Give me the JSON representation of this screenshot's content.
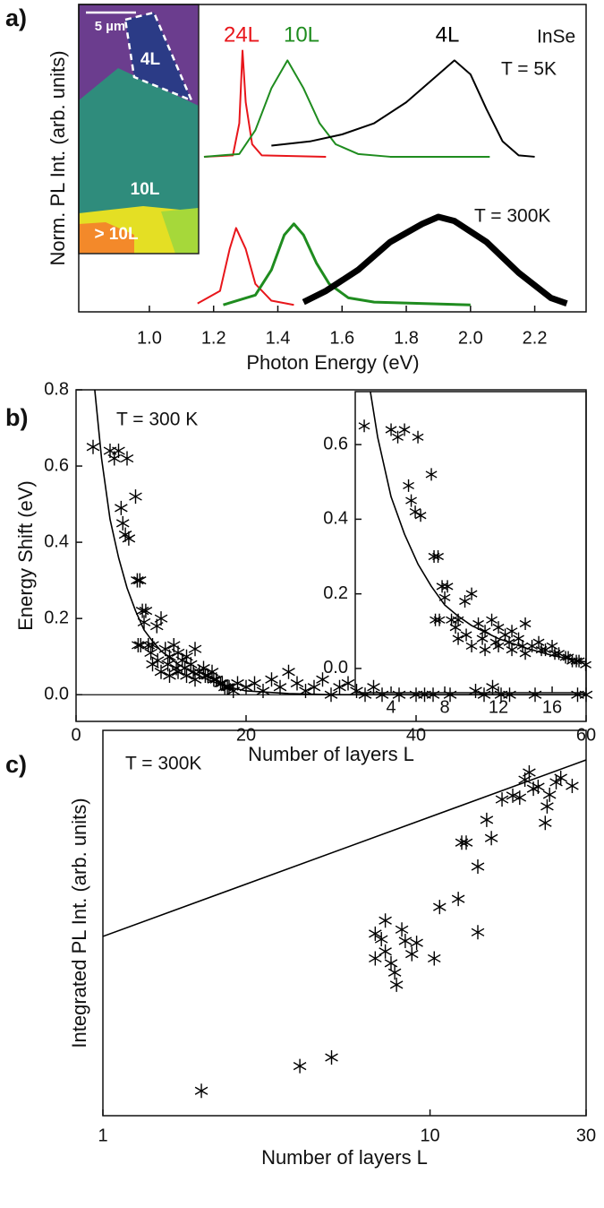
{
  "chart_data": [
    {
      "type": "line",
      "label": "a)",
      "xlabel": "Photon Energy (eV)",
      "ylabel": "Norm. PL Int. (arb. units)",
      "xlim": [
        0.78,
        2.36
      ],
      "ylim": [
        0,
        2.2
      ],
      "xticks": [
        {
          "value": 1,
          "label": "1.0"
        },
        1.2,
        1.4,
        1.6,
        1.8,
        {
          "value": 2,
          "label": "2.0"
        },
        2.2
      ],
      "annotations": [
        "InSe",
        "T = 5K",
        "T = 300K"
      ],
      "image_labels": [
        "5 µm",
        "4L",
        "10L",
        "> 10L"
      ],
      "series": [
        {
          "name": "24L",
          "color": "#e8161b",
          "linewidth": 2,
          "x": [
            1.17,
            1.26,
            1.28,
            1.29,
            1.3,
            1.32,
            1.35,
            1.55
          ],
          "values": [
            1.11,
            1.12,
            1.35,
            1.87,
            1.5,
            1.2,
            1.12,
            1.11
          ]
        },
        {
          "name": "10L",
          "color": "#1f8c1f",
          "linewidth": 2,
          "x": [
            1.17,
            1.28,
            1.33,
            1.38,
            1.43,
            1.48,
            1.53,
            1.58,
            1.65,
            1.75,
            2.06
          ],
          "values": [
            1.11,
            1.13,
            1.3,
            1.6,
            1.8,
            1.6,
            1.35,
            1.2,
            1.13,
            1.11,
            1.11
          ]
        },
        {
          "name": "4L",
          "color": "#000000",
          "linewidth": 2,
          "x": [
            1.38,
            1.5,
            1.6,
            1.7,
            1.8,
            1.9,
            1.95,
            2.0,
            2.05,
            2.1,
            2.15,
            2.2
          ],
          "values": [
            1.19,
            1.22,
            1.27,
            1.35,
            1.5,
            1.7,
            1.8,
            1.7,
            1.45,
            1.22,
            1.12,
            1.11
          ]
        },
        {
          "color": "#e8161b",
          "linewidth": 2,
          "x": [
            1.15,
            1.22,
            1.25,
            1.27,
            1.3,
            1.33,
            1.38,
            1.45
          ],
          "values": [
            0.06,
            0.15,
            0.45,
            0.6,
            0.45,
            0.2,
            0.08,
            0.05
          ]
        },
        {
          "color": "#1f8c1f",
          "linewidth": 3,
          "x": [
            1.23,
            1.33,
            1.38,
            1.42,
            1.45,
            1.48,
            1.52,
            1.56,
            1.62,
            1.7,
            2.0
          ],
          "values": [
            0.05,
            0.12,
            0.3,
            0.55,
            0.63,
            0.55,
            0.35,
            0.2,
            0.1,
            0.07,
            0.05
          ]
        },
        {
          "color": "#000000",
          "linewidth": 7,
          "x": [
            1.48,
            1.55,
            1.65,
            1.75,
            1.85,
            1.9,
            1.95,
            2.05,
            2.15,
            2.25,
            2.3
          ],
          "values": [
            0.07,
            0.15,
            0.3,
            0.5,
            0.63,
            0.68,
            0.65,
            0.5,
            0.28,
            0.1,
            0.06
          ]
        }
      ]
    },
    {
      "type": "scatter",
      "label": "b)",
      "xlabel": "Number of layers L",
      "ylabel": "Energy Shift (eV)",
      "xlim": [
        0,
        60
      ],
      "ylim": [
        -0.07,
        0.8
      ],
      "xticks": [
        0,
        20,
        40,
        60
      ],
      "yticks": [
        {
          "value": 0,
          "label": "0.0"
        },
        0.2,
        0.4,
        0.6,
        0.8
      ],
      "zero_line": 0,
      "annotations": [
        "T = 300 K"
      ],
      "series": [
        {
          "type": "scatter",
          "color": "#000000",
          "x": [
            2,
            4,
            4.5,
            5,
            5.3,
            5.5,
            5.8,
            6,
            6.2,
            7,
            7.2,
            7.5,
            7.8,
            8,
            8.2,
            7.3,
            7.6,
            8.5,
            9,
            9.5,
            10,
            10.5,
            11,
            11.5,
            12,
            12.5,
            13,
            13.5,
            14,
            14.5,
            15,
            15.5,
            16,
            16.5,
            17,
            17.5,
            18,
            18.5,
            19,
            20,
            21,
            22,
            23,
            24,
            25,
            26,
            27,
            28,
            29,
            30,
            31,
            32,
            33,
            34,
            35,
            36,
            38,
            40,
            41,
            42,
            44,
            47,
            48,
            49,
            50,
            51,
            54,
            59,
            60,
            9,
            10,
            11,
            12,
            13,
            14,
            8.8,
            9.6,
            10.8,
            11.8,
            12.8,
            13.8,
            15.2,
            16.2,
            17.2,
            17.8
          ],
          "values": [
            0.65,
            0.64,
            0.62,
            0.64,
            0.49,
            0.45,
            0.42,
            0.62,
            0.41,
            0.52,
            0.3,
            0.3,
            0.22,
            0.19,
            0.22,
            0.13,
            0.13,
            0.13,
            0.13,
            0.18,
            0.2,
            0.12,
            0.1,
            0.13,
            0.11,
            0.09,
            0.1,
            0.08,
            0.12,
            0.06,
            0.07,
            0.05,
            0.06,
            0.04,
            0.03,
            0.02,
            0.02,
            0.01,
            0.03,
            0.02,
            0.03,
            0.01,
            0.04,
            0.02,
            0.06,
            0.03,
            0.01,
            0.02,
            0.04,
            0,
            0.02,
            0.03,
            0.01,
            0,
            0.02,
            0,
            0,
            0,
            0,
            0,
            0,
            0.01,
            0,
            0.02,
            0,
            0,
            0,
            0,
            0,
            0.08,
            0.06,
            0.05,
            0.06,
            0.05,
            0.04,
            0.11,
            0.09,
            0.08,
            0.07,
            0.07,
            0.06,
            0.05,
            0.04,
            0.03,
            0.02
          ]
        },
        {
          "type": "line",
          "color": "#000000",
          "x": [
            2.2,
            3,
            4,
            5,
            6,
            7,
            8,
            9,
            10,
            12,
            14,
            16,
            18,
            20,
            25,
            30,
            60
          ],
          "values": [
            0.8,
            0.62,
            0.46,
            0.36,
            0.28,
            0.22,
            0.17,
            0.14,
            0.115,
            0.08,
            0.055,
            0.035,
            0.02,
            0.01,
            0.003,
            0,
            0
          ]
        }
      ],
      "inset": {
        "xlim": [
          1.33,
          18.53
        ],
        "ylim": [
          -0.065,
          0.742
        ],
        "xticks": [
          4,
          8,
          12,
          16
        ],
        "yticks": [
          {
            "value": 0,
            "label": "0.0"
          },
          0.2,
          0.4,
          0.6
        ]
      }
    },
    {
      "type": "scatter",
      "label": "c)",
      "xlabel": "Number of layers L",
      "ylabel": "Integrated PL Int. (arb. units)",
      "xlog": true,
      "ylog": true,
      "xlim": [
        1,
        30
      ],
      "ylim": [
        1,
        100000
      ],
      "xticks": [
        1,
        10,
        30
      ],
      "annotations": [
        "T = 300K"
      ],
      "series": [
        {
          "type": "scatter",
          "color": "#000000",
          "x": [
            2,
            4,
            5,
            6.8,
            7.1,
            6.8,
            7.3,
            7.3,
            7.6,
            7.8,
            7.9,
            8.2,
            8.4,
            8.8,
            9.1,
            10.3,
            10.7,
            12.2,
            12.5,
            12.9,
            14,
            14,
            14.9,
            15.4,
            16.6,
            17.9,
            18.8,
            19.5,
            20.1,
            20.7,
            21.4,
            22.5,
            22.8,
            23.2,
            24.3,
            25.1,
            27.2
          ],
          "values": [
            2.1,
            4.4,
            5.7,
            230,
            195,
            110,
            135,
            340,
            95,
            72,
            50,
            260,
            185,
            125,
            175,
            110,
            510,
            650,
            3500,
            3500,
            240,
            1710,
            6900,
            4000,
            12700,
            14200,
            13400,
            22900,
            28400,
            17500,
            18500,
            6300,
            10300,
            14600,
            21200,
            24200,
            19000
          ]
        },
        {
          "type": "line",
          "color": "#000000",
          "x": [
            1,
            30
          ],
          "values": [
            212,
            41300
          ]
        }
      ]
    }
  ]
}
